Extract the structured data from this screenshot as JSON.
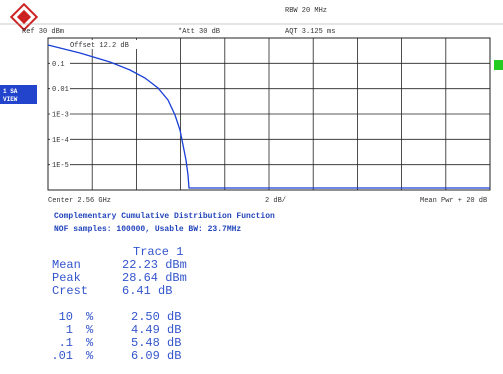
{
  "header": {
    "rbw": "RBW 20 MHz",
    "ref": "Ref  30 dBm",
    "att": "*Att  30 dB",
    "aqt": "AQT 3.125 ms"
  },
  "plot": {
    "offset": "Offset  12.2 dB",
    "y_labels": [
      "0.1",
      "0.01",
      "1E-3",
      "1E-4",
      "1E-5"
    ],
    "side_label": [
      "1 SA",
      "VIEW"
    ]
  },
  "footer": {
    "center": "Center 2.56 GHz",
    "scale": "2 dB/",
    "right": "Mean Pwr + 20 dB"
  },
  "title": "Complementary Cumulative Distribution Function",
  "subtitle": "NOF samples: 100000, Usable BW:  23.7MHz",
  "table": {
    "header": "Trace 1",
    "rows": [
      [
        "Mean",
        "22.23 dBm"
      ],
      [
        "Peak",
        "28.64 dBm"
      ],
      [
        "Crest",
        "6.41 dB"
      ]
    ],
    "percentiles": [
      [
        "10",
        "%",
        "2.50 dB"
      ],
      [
        "1",
        "%",
        "4.49 dB"
      ],
      [
        ".1",
        "%",
        "5.48 dB"
      ],
      [
        ".01",
        "%",
        "6.09 dB"
      ]
    ]
  }
}
